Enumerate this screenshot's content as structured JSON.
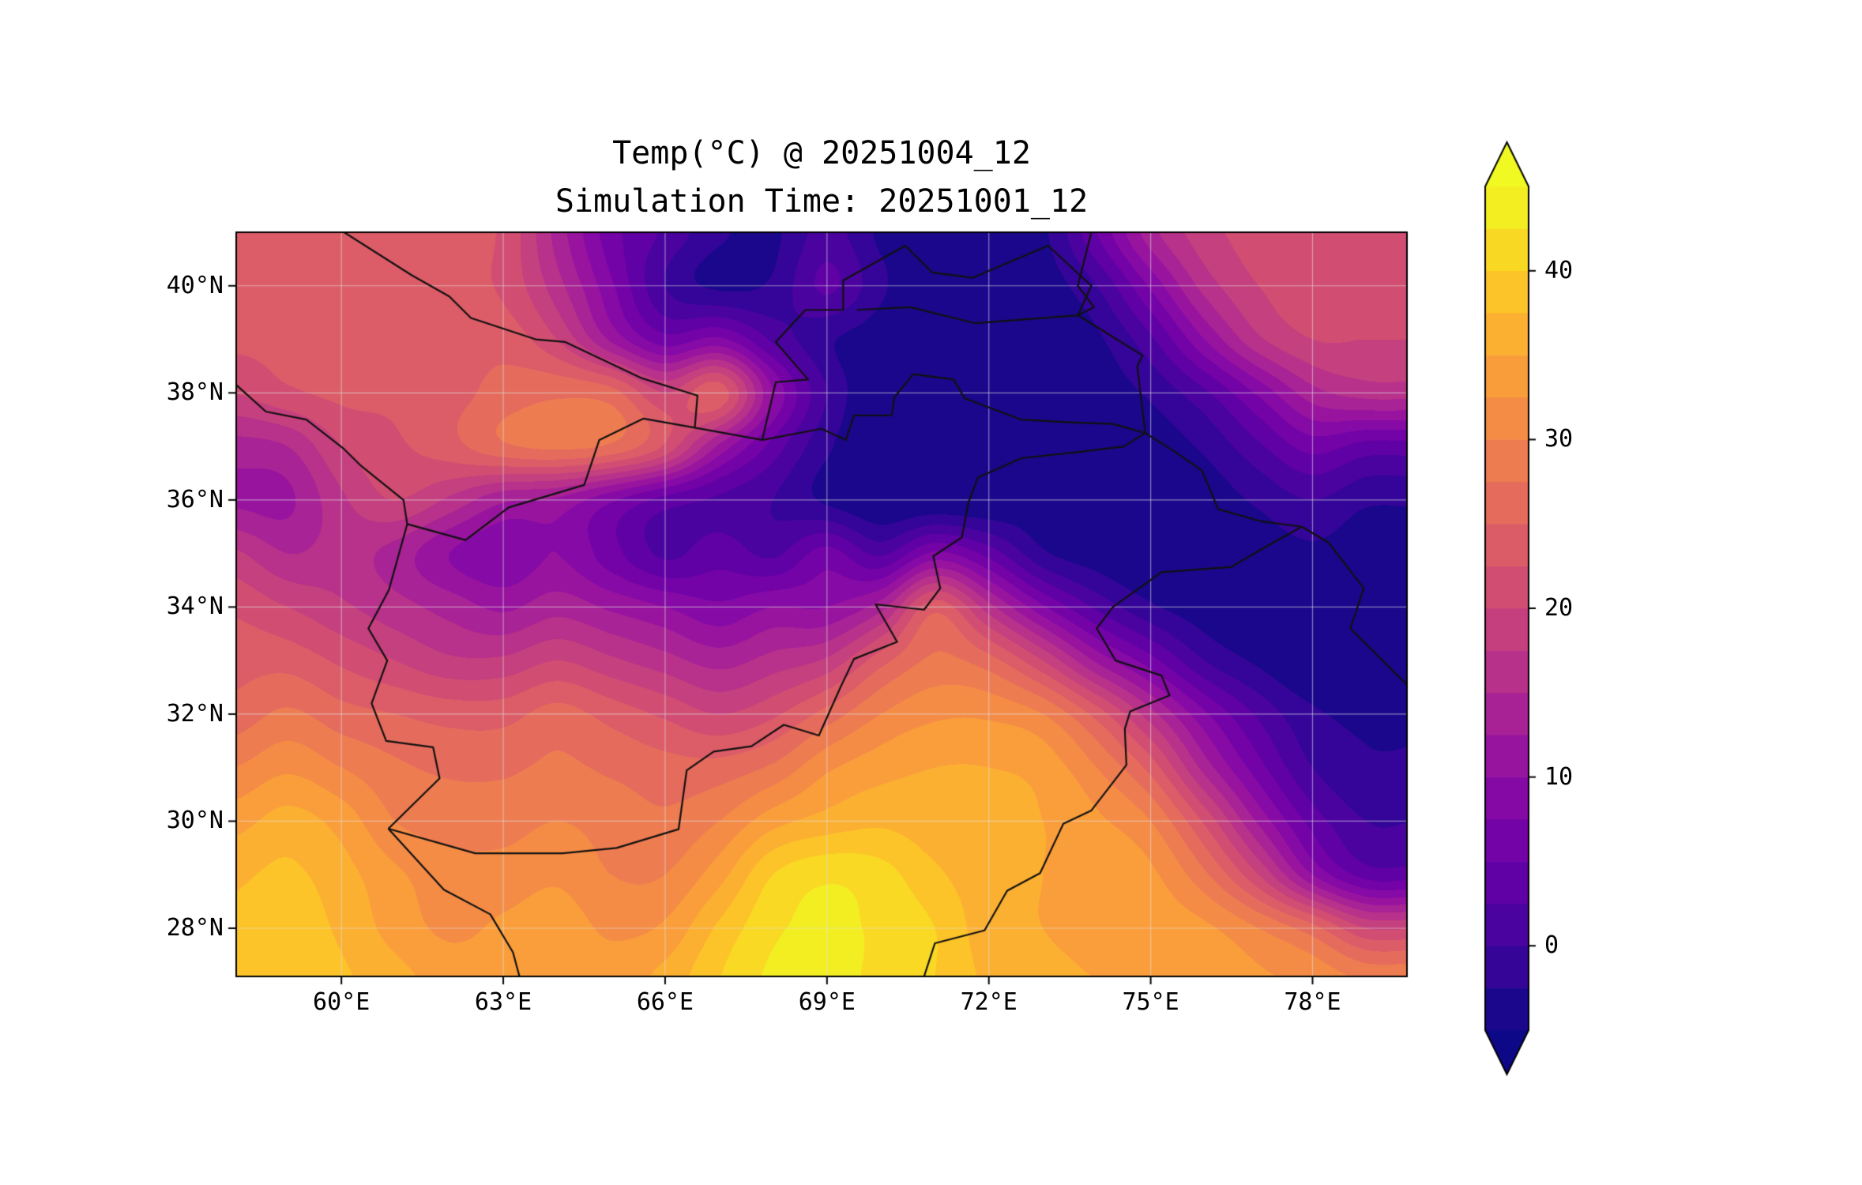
{
  "chart_data": {
    "type": "heatmap",
    "title": "Temp(°C) @ 20251004_12",
    "subtitle": "Simulation Time: 20251001_12",
    "xlabel": "",
    "ylabel": "",
    "x_axis": {
      "tick_labels": [
        "60°E",
        "63°E",
        "66°E",
        "69°E",
        "72°E",
        "75°E",
        "78°E"
      ],
      "tick_values": [
        60,
        63,
        66,
        69,
        72,
        75,
        78
      ],
      "range": [
        58.05,
        79.75
      ]
    },
    "y_axis": {
      "tick_labels": [
        "40°N",
        "38°N",
        "36°N",
        "34°N",
        "32°N",
        "30°N",
        "28°N"
      ],
      "tick_values": [
        40,
        38,
        36,
        34,
        32,
        30,
        28
      ],
      "range": [
        27.1,
        41.0
      ]
    },
    "colorbar": {
      "tick_labels": [
        "40",
        "30",
        "20",
        "10",
        "0"
      ],
      "tick_values": [
        40,
        30,
        20,
        10,
        0
      ],
      "vmin": -5,
      "vmax": 45,
      "band_step": 2.5,
      "extend": "both",
      "under_color": "#0d0887",
      "over_color": "#f0f921"
    },
    "colormap": {
      "name": "plasma",
      "stops": [
        "#0d0887",
        "#41049d",
        "#6a00a8",
        "#8f0da4",
        "#b12a90",
        "#cc4778",
        "#e16462",
        "#f2844b",
        "#fca636",
        "#fcce25",
        "#f0f921"
      ]
    },
    "grid": {
      "unit": "°C",
      "lons": [
        58,
        59,
        60,
        61,
        62,
        63,
        64,
        65,
        66,
        67,
        68,
        69,
        70,
        71,
        72,
        73,
        74,
        75,
        76,
        77,
        78,
        79
      ],
      "lats": [
        41,
        40,
        39,
        38,
        37,
        36,
        35,
        34,
        33,
        32,
        31,
        30,
        29,
        28,
        27
      ],
      "values": [
        [
          23,
          23,
          23,
          23,
          23,
          22,
          14,
          6,
          2,
          -2,
          -3,
          1,
          -3,
          -4,
          -4,
          -3,
          5,
          14,
          19,
          21,
          22,
          22
        ],
        [
          23,
          23,
          23,
          23,
          23,
          22,
          16,
          8,
          0,
          -3,
          -2,
          3,
          -2,
          -5,
          -5,
          -4,
          0,
          8,
          16,
          20,
          21,
          21
        ],
        [
          23,
          23,
          23,
          23,
          23,
          24,
          20,
          12,
          6,
          8,
          2,
          -2,
          -4,
          -5,
          -5,
          -5,
          -3,
          2,
          10,
          17,
          20,
          20
        ],
        [
          20,
          22,
          23,
          23,
          24,
          26,
          27,
          26,
          20,
          24,
          10,
          0,
          -5,
          -5,
          -5,
          -5,
          -4,
          -2,
          2,
          8,
          14,
          16
        ],
        [
          14,
          15,
          20,
          22,
          24,
          27,
          28,
          27,
          22,
          12,
          4,
          -2,
          -5,
          -5,
          -5,
          -5,
          -5,
          -4,
          -2,
          2,
          6,
          4
        ],
        [
          12,
          12,
          17,
          20,
          17,
          13,
          12,
          8,
          4,
          2,
          0,
          -3,
          -5,
          -5,
          -5,
          -4,
          -5,
          -4,
          -4,
          -2,
          0,
          -2
        ],
        [
          18,
          15,
          16,
          14,
          10,
          8,
          10,
          6,
          2,
          4,
          2,
          6,
          2,
          8,
          4,
          -2,
          -4,
          -5,
          -5,
          -4,
          -3,
          -4
        ],
        [
          22,
          20,
          18,
          16,
          14,
          12,
          14,
          12,
          10,
          8,
          10,
          10,
          14,
          24,
          16,
          8,
          2,
          -2,
          -4,
          -5,
          -4,
          -5
        ],
        [
          24,
          24,
          22,
          20,
          18,
          18,
          20,
          18,
          16,
          14,
          16,
          18,
          24,
          28,
          26,
          20,
          12,
          6,
          0,
          -3,
          -5,
          -4
        ],
        [
          26,
          28,
          26,
          25,
          24,
          24,
          26,
          24,
          22,
          20,
          22,
          26,
          30,
          32,
          32,
          30,
          24,
          16,
          8,
          2,
          -2,
          -3
        ],
        [
          30,
          32,
          30,
          28,
          27,
          27,
          28,
          27,
          26,
          26,
          28,
          32,
          34,
          35,
          35,
          34,
          30,
          24,
          14,
          6,
          0,
          -2
        ],
        [
          34,
          36,
          34,
          30,
          29,
          29,
          30,
          29,
          28,
          30,
          34,
          36,
          37,
          36,
          36,
          35,
          33,
          30,
          22,
          12,
          4,
          0
        ],
        [
          37,
          38,
          36,
          33,
          31,
          31,
          32,
          30,
          30,
          34,
          40,
          42,
          41,
          38,
          36,
          35,
          34,
          33,
          28,
          20,
          10,
          4
        ],
        [
          38,
          39,
          37,
          34,
          32,
          33,
          34,
          32,
          33,
          38,
          42,
          43,
          42,
          40,
          36,
          35,
          34,
          34,
          33,
          30,
          26,
          20
        ],
        [
          39,
          40,
          38,
          36,
          34,
          34,
          35,
          34,
          36,
          40,
          43,
          43,
          42,
          40,
          37,
          36,
          35,
          35,
          34,
          33,
          32,
          30
        ]
      ]
    },
    "borders": [
      [
        [
          58.05,
          38.15
        ],
        [
          58.6,
          37.65
        ],
        [
          59.35,
          37.5
        ],
        [
          60.05,
          36.95
        ],
        [
          60.35,
          36.65
        ],
        [
          61.15,
          36.0
        ],
        [
          61.22,
          35.55
        ]
      ],
      [
        [
          61.22,
          35.55
        ],
        [
          60.88,
          34.32
        ],
        [
          60.5,
          33.6
        ],
        [
          60.85,
          33.0
        ],
        [
          60.56,
          32.2
        ],
        [
          60.83,
          31.5
        ],
        [
          61.7,
          31.38
        ],
        [
          61.82,
          30.8
        ],
        [
          60.87,
          29.86
        ]
      ],
      [
        [
          60.87,
          29.86
        ],
        [
          61.9,
          28.72
        ],
        [
          62.76,
          28.26
        ],
        [
          63.18,
          27.55
        ],
        [
          63.3,
          27.1
        ]
      ],
      [
        [
          61.22,
          35.55
        ],
        [
          62.3,
          35.25
        ],
        [
          63.1,
          35.86
        ],
        [
          64.5,
          36.28
        ],
        [
          64.78,
          37.12
        ],
        [
          65.6,
          37.52
        ],
        [
          66.55,
          37.35
        ],
        [
          67.8,
          37.12
        ],
        [
          68.9,
          37.33
        ],
        [
          69.35,
          37.12
        ],
        [
          69.5,
          37.58
        ],
        [
          70.2,
          37.58
        ],
        [
          70.25,
          37.92
        ],
        [
          70.6,
          38.35
        ],
        [
          71.35,
          38.25
        ],
        [
          71.55,
          37.9
        ],
        [
          72.6,
          37.5
        ],
        [
          73.5,
          37.45
        ],
        [
          74.3,
          37.42
        ],
        [
          74.9,
          37.25
        ]
      ],
      [
        [
          74.9,
          37.25
        ],
        [
          74.5,
          37.0
        ],
        [
          73.7,
          36.9
        ],
        [
          72.6,
          36.78
        ],
        [
          71.8,
          36.42
        ],
        [
          71.62,
          35.95
        ],
        [
          71.5,
          35.3
        ],
        [
          70.97,
          34.95
        ],
        [
          71.1,
          34.35
        ],
        [
          70.8,
          33.95
        ],
        [
          69.9,
          34.05
        ],
        [
          70.3,
          33.35
        ],
        [
          69.5,
          33.03
        ],
        [
          69.25,
          32.5
        ],
        [
          68.85,
          31.6
        ],
        [
          68.2,
          31.8
        ],
        [
          67.6,
          31.4
        ],
        [
          66.9,
          31.3
        ],
        [
          66.4,
          30.95
        ],
        [
          66.25,
          29.85
        ],
        [
          65.1,
          29.5
        ],
        [
          64.1,
          29.4
        ],
        [
          62.48,
          29.4
        ],
        [
          60.87,
          29.86
        ]
      ],
      [
        [
          70.8,
          27.1
        ],
        [
          71.0,
          27.72
        ],
        [
          71.92,
          27.96
        ],
        [
          72.34,
          28.7
        ],
        [
          72.95,
          29.03
        ],
        [
          73.38,
          29.95
        ],
        [
          73.9,
          30.2
        ],
        [
          74.55,
          31.05
        ],
        [
          74.52,
          31.72
        ],
        [
          74.62,
          32.05
        ],
        [
          75.35,
          32.35
        ],
        [
          75.2,
          32.72
        ],
        [
          74.35,
          33.0
        ],
        [
          74.0,
          33.6
        ],
        [
          74.3,
          34.0
        ],
        [
          75.2,
          34.65
        ],
        [
          76.5,
          34.75
        ],
        [
          77.0,
          35.05
        ],
        [
          77.8,
          35.5
        ]
      ],
      [
        [
          74.9,
          37.25
        ],
        [
          75.45,
          36.9
        ],
        [
          75.95,
          36.55
        ],
        [
          76.25,
          35.83
        ],
        [
          77.05,
          35.6
        ],
        [
          77.8,
          35.5
        ]
      ],
      [
        [
          77.8,
          35.5
        ],
        [
          78.3,
          35.2
        ],
        [
          78.95,
          34.35
        ],
        [
          78.7,
          33.6
        ],
        [
          79.4,
          32.9
        ],
        [
          79.75,
          32.55
        ]
      ],
      [
        [
          60.05,
          41.0
        ],
        [
          61.3,
          40.2
        ],
        [
          62.0,
          39.8
        ],
        [
          62.4,
          39.4
        ],
        [
          63.6,
          39.0
        ],
        [
          64.15,
          38.95
        ],
        [
          65.55,
          38.28
        ],
        [
          66.6,
          37.95
        ],
        [
          66.55,
          37.35
        ]
      ],
      [
        [
          67.8,
          37.12
        ],
        [
          68.05,
          38.2
        ],
        [
          68.65,
          38.25
        ],
        [
          68.05,
          38.95
        ],
        [
          68.6,
          39.55
        ],
        [
          69.3,
          39.55
        ],
        [
          69.3,
          40.1
        ],
        [
          70.45,
          40.75
        ],
        [
          70.95,
          40.25
        ],
        [
          71.7,
          40.15
        ],
        [
          72.4,
          40.45
        ],
        [
          73.1,
          40.75
        ],
        [
          73.9,
          40.0
        ],
        [
          73.65,
          39.45
        ],
        [
          71.75,
          39.3
        ],
        [
          70.55,
          39.6
        ],
        [
          69.55,
          39.55
        ]
      ],
      [
        [
          73.9,
          41.0
        ],
        [
          73.65,
          40.0
        ],
        [
          73.95,
          39.6
        ],
        [
          73.65,
          39.45
        ],
        [
          74.85,
          38.7
        ],
        [
          74.75,
          38.5
        ],
        [
          74.9,
          37.25
        ]
      ]
    ],
    "layout": {
      "grid_on": true,
      "legend_position": "right-colorbar"
    }
  }
}
